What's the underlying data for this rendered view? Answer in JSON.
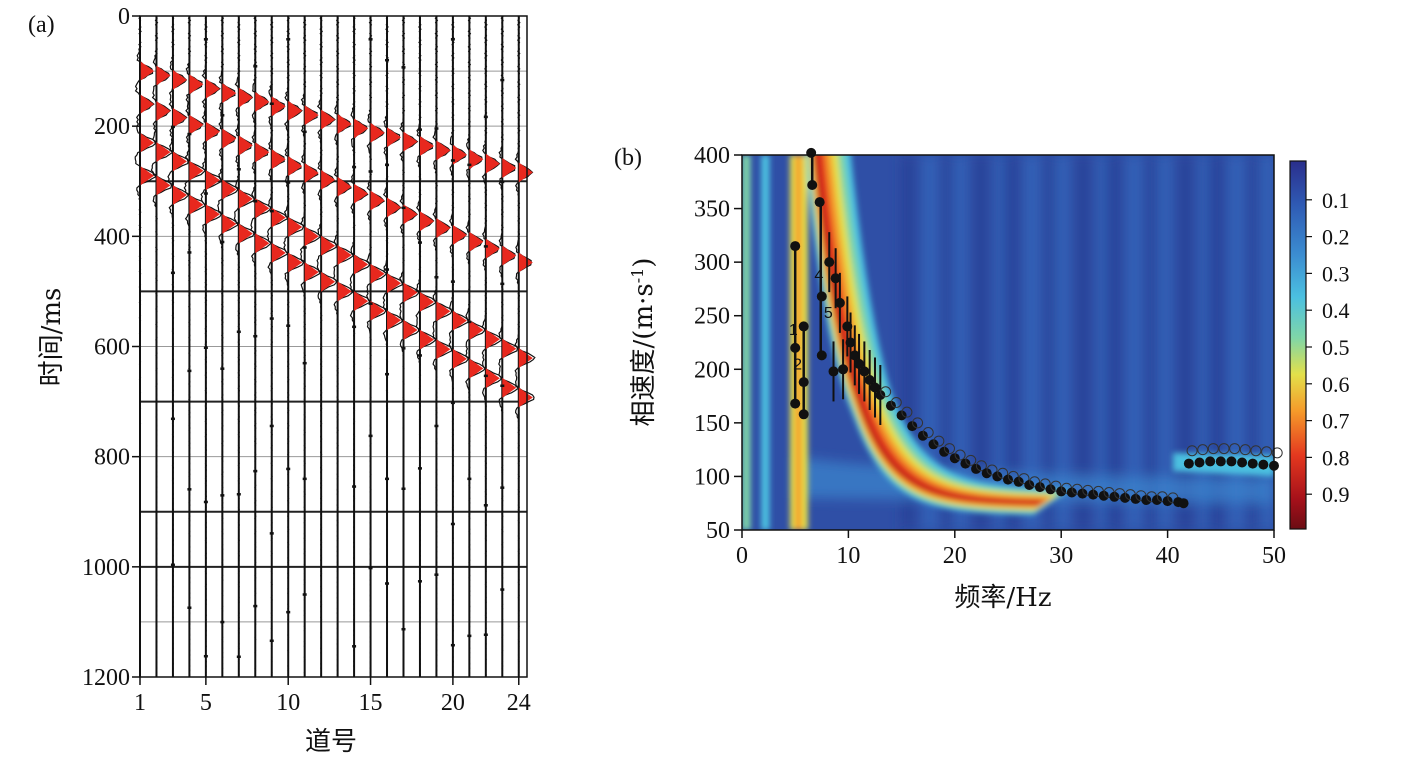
{
  "panel_a": {
    "label": "(a)",
    "xlabel": "道号",
    "ylabel": "时间/ms"
  },
  "panel_b": {
    "label": "(b)",
    "xlabel": "频率/Hz",
    "ylabel_main": "相速度/(m·s",
    "ylabel_sup": "-1",
    "ylabel_close": ")"
  },
  "colors": {
    "trace_fill": "#e8281e",
    "wiggle": "#111111",
    "grid": "#222222"
  },
  "chart_data": [
    {
      "type": "line",
      "title": "",
      "xlabel": "道号",
      "ylabel": "时间/ms",
      "x_ticks": [
        "1",
        "5",
        "10",
        "15",
        "20",
        "24"
      ],
      "y_ticks": [
        "0",
        "200",
        "400",
        "600",
        "800",
        "1000",
        "1200"
      ],
      "xlim": [
        1,
        24.5
      ],
      "ylim": [
        1200,
        0
      ],
      "y_inverted": true,
      "grid": true,
      "traces": 24,
      "events": [
        {
          "name": "event-1",
          "t0_ms": 100,
          "slope_ms_per_trace": 8.0
        },
        {
          "name": "event-2",
          "t0_ms": 160,
          "slope_ms_per_trace": 12.5
        },
        {
          "name": "event-3",
          "t0_ms": 230,
          "slope_ms_per_trace": 17.0
        },
        {
          "name": "event-4",
          "t0_ms": 290,
          "slope_ms_per_trace": 17.5
        }
      ]
    },
    {
      "type": "heatmap",
      "title": "",
      "xlabel": "频率/Hz",
      "ylabel": "相速度/(m·s-1)",
      "x_ticks": [
        "0",
        "10",
        "20",
        "30",
        "40",
        "50"
      ],
      "y_ticks": [
        "50",
        "100",
        "150",
        "200",
        "250",
        "300",
        "350",
        "400"
      ],
      "xlim": [
        0,
        50
      ],
      "ylim": [
        50,
        400
      ],
      "colorbar_ticks": [
        "0.1",
        "0.2",
        "0.3",
        "0.4",
        "0.5",
        "0.6",
        "0.7",
        "0.8",
        "0.9"
      ],
      "colorscale": [
        "#2a2e8c",
        "#2f5bb4",
        "#3b8bd0",
        "#4bc0e0",
        "#7fd6a8",
        "#e3e04a",
        "#f59a2a",
        "#e4381f",
        "#a5101a",
        "#6b0d14"
      ],
      "mode_labels": [
        "1",
        "2",
        "4",
        "5"
      ],
      "picks_mode1": [
        [
          5,
          315
        ],
        [
          5,
          220
        ],
        [
          5,
          168
        ],
        [
          5.8,
          240
        ],
        [
          5.8,
          188
        ],
        [
          5.8,
          158
        ]
      ],
      "picks_mode2": [
        [
          6.5,
          402
        ],
        [
          6.6,
          372
        ],
        [
          7.3,
          356
        ],
        [
          7.5,
          268
        ],
        [
          7.5,
          213
        ],
        [
          8.2,
          300
        ],
        [
          8.6,
          198
        ],
        [
          8.8,
          285
        ],
        [
          9.2,
          262
        ],
        [
          9.5,
          200
        ],
        [
          9.9,
          240
        ],
        [
          10.2,
          225
        ],
        [
          10.6,
          213
        ],
        [
          11,
          205
        ],
        [
          11.5,
          198
        ],
        [
          12,
          190
        ],
        [
          12.5,
          183
        ],
        [
          13,
          176
        ],
        [
          14,
          166
        ],
        [
          15,
          157
        ],
        [
          16,
          147
        ],
        [
          17,
          138
        ],
        [
          18,
          130
        ],
        [
          19,
          123
        ],
        [
          20,
          117
        ],
        [
          21,
          112
        ],
        [
          22,
          107
        ],
        [
          23,
          103
        ],
        [
          24,
          100
        ],
        [
          25,
          97
        ],
        [
          26,
          95
        ],
        [
          27,
          92
        ],
        [
          28,
          90
        ],
        [
          29,
          88
        ],
        [
          30,
          86
        ],
        [
          31,
          85
        ],
        [
          32,
          84
        ],
        [
          33,
          83
        ],
        [
          34,
          82
        ],
        [
          35,
          81
        ],
        [
          36,
          80
        ],
        [
          37,
          79
        ],
        [
          38,
          78
        ],
        [
          39,
          78
        ],
        [
          40,
          77
        ],
        [
          41,
          76
        ],
        [
          41.5,
          75
        ]
      ],
      "picks_mode3": [
        [
          42,
          112
        ],
        [
          43,
          113
        ],
        [
          44,
          114
        ],
        [
          45,
          114
        ],
        [
          46,
          114
        ],
        [
          47,
          113
        ],
        [
          48,
          112
        ],
        [
          49,
          111
        ],
        [
          50,
          110
        ]
      ]
    }
  ]
}
